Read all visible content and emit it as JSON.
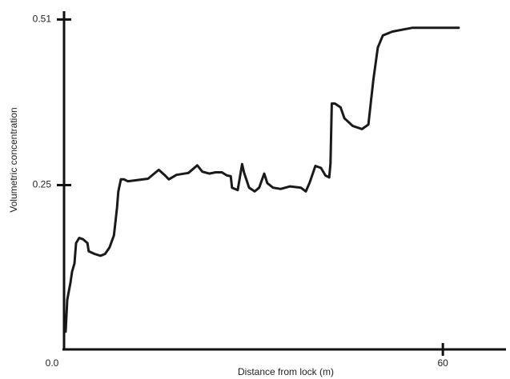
{
  "chart_data": {
    "type": "line",
    "x_label": "Distance from lock (m)",
    "y_label": "Volumetric concentration",
    "xlim": [
      0,
      70
    ],
    "ylim": [
      -0.008,
      0.523
    ],
    "xticks": [
      {
        "value": 0,
        "label": "0.0"
      },
      60
    ],
    "yticks": [
      0.25,
      0.51
    ],
    "grid": false,
    "series": [
      {
        "color": "#1a1a1a",
        "x": [
          0.25,
          0.51,
          1.0,
          1.27,
          1.65,
          1.9,
          2.4,
          3.0,
          3.7,
          3.9,
          4.8,
          5.8,
          6.5,
          7.2,
          7.9,
          8.4,
          8.6,
          9.0,
          9.5,
          10.1,
          11.7,
          13.3,
          15.0,
          16.0,
          16.6,
          17.8,
          19.7,
          21.1,
          21.9,
          23.0,
          24.0,
          25.0,
          25.8,
          26.4,
          26.6,
          27.5,
          28.2,
          28.5,
          29.3,
          30.2,
          30.9,
          31.7,
          32.2,
          33.1,
          34.3,
          35.8,
          37.5,
          38.3,
          38.9,
          39.8,
          40.7,
          41.4,
          42.0,
          42.2,
          42.4,
          42.9,
          43.8,
          44.4,
          45.7,
          47.2,
          48.2,
          49.0,
          49.7,
          50.5,
          52.0,
          55.2,
          62.5
        ],
        "values": [
          0.02,
          0.07,
          0.096,
          0.114,
          0.127,
          0.159,
          0.167,
          0.165,
          0.159,
          0.146,
          0.142,
          0.139,
          0.142,
          0.152,
          0.171,
          0.215,
          0.24,
          0.259,
          0.259,
          0.256,
          0.258,
          0.26,
          0.274,
          0.265,
          0.259,
          0.266,
          0.269,
          0.281,
          0.271,
          0.268,
          0.27,
          0.27,
          0.265,
          0.264,
          0.246,
          0.242,
          0.283,
          0.27,
          0.246,
          0.24,
          0.246,
          0.268,
          0.253,
          0.246,
          0.244,
          0.248,
          0.246,
          0.24,
          0.254,
          0.28,
          0.277,
          0.265,
          0.262,
          0.284,
          0.378,
          0.378,
          0.372,
          0.355,
          0.343,
          0.338,
          0.345,
          0.416,
          0.466,
          0.485,
          0.491,
          0.497,
          0.497
        ]
      }
    ]
  }
}
